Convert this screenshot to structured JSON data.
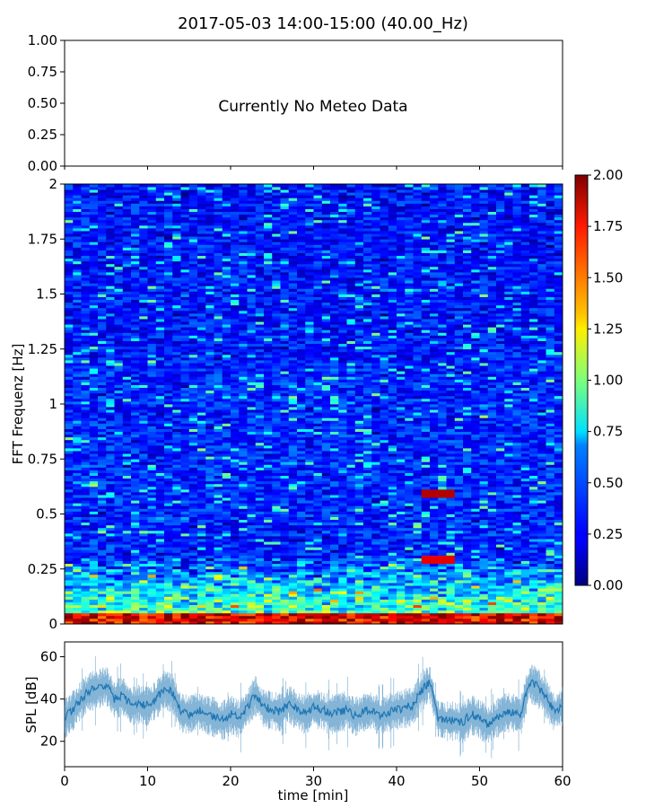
{
  "chart_data": [
    {
      "type": "line",
      "panel": "meteo",
      "title": "2017-05-03 14:00-15:00 (40.00_Hz)",
      "annotation": "Currently No Meteo Data",
      "ylim": [
        0,
        1
      ],
      "yticks": [
        "0.00",
        "0.25",
        "0.50",
        "0.75",
        "1.00"
      ],
      "xlim": [
        0,
        60
      ],
      "xtick_count": 7
    },
    {
      "type": "heatmap",
      "panel": "spectrogram",
      "ylabel": "FFT Frequenz [Hz]",
      "xlim": [
        0,
        60
      ],
      "ylim": [
        0,
        2
      ],
      "yticks": [
        "0",
        "0.25",
        "0.5",
        "0.75",
        "1",
        "1.25",
        "1.5",
        "1.75",
        "2"
      ],
      "colormap": "jet",
      "colorbar": {
        "range": [
          0,
          2
        ],
        "ticks": [
          "0.00",
          "0.25",
          "0.50",
          "0.75",
          "1.00",
          "1.25",
          "1.50",
          "1.75",
          "2.00"
        ]
      },
      "features": [
        {
          "x_range": [
            43,
            47
          ],
          "y": 0.59,
          "value": 1.9
        },
        {
          "x_range": [
            43,
            47
          ],
          "y": 0.29,
          "value": 1.8
        },
        {
          "y_range": [
            0,
            0.05
          ],
          "value": 1.9
        },
        {
          "y_range": [
            0.05,
            0.3
          ],
          "value": 0.8
        }
      ]
    },
    {
      "type": "line",
      "panel": "spl",
      "xlabel": "time [min]",
      "ylabel": "SPL [dB]",
      "xlim": [
        0,
        60
      ],
      "ylim": [
        8,
        67
      ],
      "xticks": [
        "0",
        "10",
        "20",
        "30",
        "40",
        "50",
        "60"
      ],
      "yticks": [
        "20",
        "40",
        "60"
      ],
      "color": "#1f77b4",
      "series": [
        {
          "x": [
            0,
            1,
            2,
            3,
            4,
            5,
            6,
            7,
            8,
            9,
            10,
            11,
            12,
            13,
            14,
            15,
            16,
            17,
            18,
            19,
            20,
            21,
            22,
            23,
            24,
            25,
            26,
            27,
            28,
            29,
            30,
            31,
            32,
            33,
            34,
            35,
            36,
            37,
            38,
            39,
            40,
            41,
            42,
            43,
            44,
            45,
            46,
            47,
            48,
            49,
            50,
            51,
            52,
            53,
            54,
            55,
            56,
            57,
            58,
            59,
            60
          ],
          "y": [
            31,
            35,
            40,
            44,
            45,
            47,
            40,
            42,
            37,
            38,
            37,
            40,
            45,
            43,
            34,
            33,
            35,
            33,
            32,
            30,
            33,
            31,
            36,
            42,
            36,
            35,
            34,
            38,
            35,
            33,
            36,
            35,
            33,
            34,
            35,
            32,
            34,
            35,
            32,
            34,
            35,
            36,
            37,
            44,
            48,
            31,
            30,
            30,
            29,
            33,
            31,
            28,
            31,
            34,
            34,
            33,
            48,
            46,
            41,
            34,
            37
          ]
        }
      ]
    }
  ]
}
